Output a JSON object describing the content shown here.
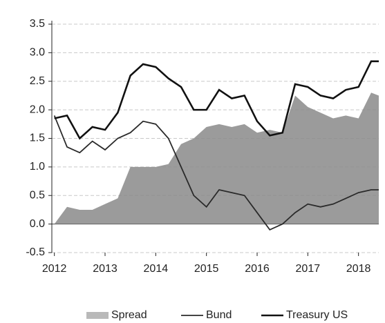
{
  "chart_data": {
    "type": "line",
    "x": [
      2012,
      2012.25,
      2012.5,
      2012.75,
      2013,
      2013.25,
      2013.5,
      2013.75,
      2014,
      2014.25,
      2014.5,
      2014.75,
      2015,
      2015.25,
      2015.5,
      2015.75,
      2016,
      2016.25,
      2016.5,
      2016.75,
      2017,
      2017.25,
      2017.5,
      2017.75,
      2018,
      2018.25,
      2018.4
    ],
    "series": [
      {
        "name": "Spread",
        "kind": "area",
        "color": "#8a8a8a",
        "values": [
          0.0,
          0.3,
          0.25,
          0.25,
          0.35,
          0.45,
          1.0,
          1.0,
          1.0,
          1.05,
          1.4,
          1.5,
          1.7,
          1.75,
          1.7,
          1.75,
          1.6,
          1.65,
          1.6,
          2.25,
          2.05,
          1.95,
          1.85,
          1.9,
          1.85,
          2.3,
          2.25
        ]
      },
      {
        "name": "Bund",
        "kind": "line",
        "color": "#2a2a2a",
        "values": [
          1.9,
          1.35,
          1.25,
          1.45,
          1.3,
          1.5,
          1.6,
          1.8,
          1.75,
          1.5,
          1.0,
          0.5,
          0.3,
          0.6,
          0.55,
          0.5,
          0.2,
          -0.1,
          0.0,
          0.2,
          0.35,
          0.3,
          0.35,
          0.45,
          0.55,
          0.6,
          0.6
        ]
      },
      {
        "name": "Treasury US",
        "kind": "line",
        "color": "#111111",
        "values": [
          1.85,
          1.9,
          1.5,
          1.7,
          1.65,
          1.95,
          2.6,
          2.8,
          2.75,
          2.55,
          2.4,
          2.0,
          2.0,
          2.35,
          2.2,
          2.25,
          1.8,
          1.55,
          1.6,
          2.45,
          2.4,
          2.25,
          2.2,
          2.35,
          2.4,
          2.85,
          2.85
        ]
      }
    ],
    "xlim": [
      2011.95,
      2018.4
    ],
    "xticks": [
      2012,
      2013,
      2014,
      2015,
      2016,
      2017,
      2018
    ],
    "ylim": [
      -0.5,
      3.5
    ],
    "yticks": [
      -0.5,
      {
        "value": 0,
        "label": "0.0"
      },
      0.5,
      {
        "value": 1,
        "label": "1.0"
      },
      1.5,
      {
        "value": 2,
        "label": "2.0"
      },
      2.5,
      {
        "value": 3,
        "label": "3.0"
      },
      3.5
    ],
    "grid": true
  }
}
